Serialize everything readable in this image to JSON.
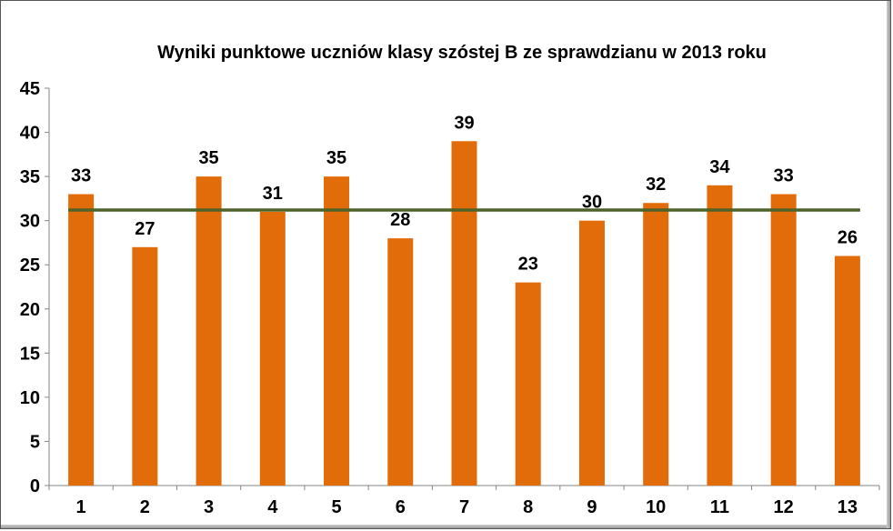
{
  "chart_data": {
    "type": "bar",
    "title": "Wyniki punktowe uczniów klasy szóstej B ze sprawdzianu w 2013 roku",
    "categories": [
      "1",
      "2",
      "3",
      "4",
      "5",
      "6",
      "7",
      "8",
      "9",
      "10",
      "11",
      "12",
      "13"
    ],
    "values": [
      33,
      27,
      35,
      31,
      35,
      28,
      39,
      23,
      30,
      32,
      34,
      33,
      26
    ],
    "average_line": 31.2,
    "ylim": [
      0,
      45
    ],
    "yticks": [
      0,
      5,
      10,
      15,
      20,
      25,
      30,
      35,
      40,
      45
    ],
    "ytick_labels": [
      "0",
      "5",
      "10",
      "15",
      "20",
      "25",
      "30",
      "35",
      "40",
      "45"
    ],
    "xlabel": "",
    "ylabel": "",
    "grid": false,
    "legend": "none",
    "colors": {
      "bar": "#E36C0A",
      "line": "#4F6228",
      "axis": "#868686"
    }
  }
}
